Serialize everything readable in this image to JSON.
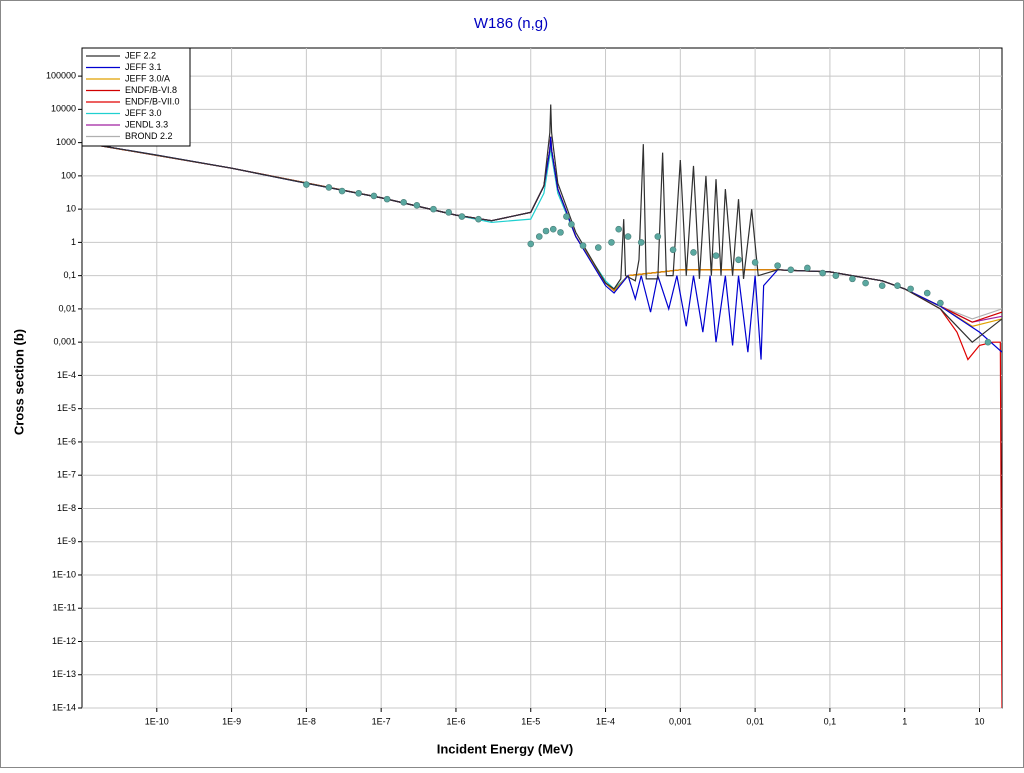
{
  "chart_data": {
    "type": "line",
    "title": "W186 (n,g)",
    "x_label": "Incident Energy (MeV)",
    "y_label": "Cross section (b)",
    "log_x": true,
    "log_y": true,
    "grid": true,
    "legend": "top-left",
    "xlim": [
      1e-11,
      20
    ],
    "ylim": [
      1e-14,
      700000
    ],
    "xticks": [
      {
        "value": 1e-10,
        "label": "1E-10"
      },
      {
        "value": 1e-09,
        "label": "1E-9"
      },
      {
        "value": 1e-08,
        "label": "1E-8"
      },
      {
        "value": 1e-07,
        "label": "1E-7"
      },
      {
        "value": 1e-06,
        "label": "1E-6"
      },
      {
        "value": 1e-05,
        "label": "1E-5"
      },
      {
        "value": 0.0001,
        "label": "1E-4"
      },
      {
        "value": 0.001,
        "label": "0,001"
      },
      {
        "value": 0.01,
        "label": "0,01"
      },
      {
        "value": 0.1,
        "label": "0,1"
      },
      1,
      10
    ],
    "yticks": [
      100000,
      10000,
      1000,
      100,
      10,
      1,
      {
        "value": 0.1,
        "label": "0,1"
      },
      {
        "value": 0.01,
        "label": "0,01"
      },
      {
        "value": 0.001,
        "label": "0,001"
      },
      {
        "value": 0.0001,
        "label": "1E-4"
      },
      {
        "value": 1e-05,
        "label": "1E-5"
      },
      {
        "value": 1e-06,
        "label": "1E-6"
      },
      {
        "value": 1e-07,
        "label": "1E-7"
      },
      {
        "value": 1e-08,
        "label": "1E-8"
      },
      {
        "value": 1e-09,
        "label": "1E-9"
      },
      {
        "value": 1e-10,
        "label": "1E-10"
      },
      {
        "value": 1e-11,
        "label": "1E-11"
      },
      {
        "value": 1e-12,
        "label": "1E-12"
      },
      {
        "value": 1e-13,
        "label": "1E-13"
      },
      {
        "value": 1e-14,
        "label": "1E-14"
      }
    ],
    "series": [
      {
        "name": "JEF 2.2",
        "color": "#303030",
        "x": [
          1e-11,
          1e-10,
          1e-09,
          1e-08,
          1e-07,
          1e-06,
          3e-06,
          1e-05,
          1.5e-05,
          1.8e-05,
          1.85e-05,
          1.9e-05,
          2.3e-05,
          4e-05,
          0.0001,
          0.00013,
          0.00016,
          0.000175,
          0.000185,
          0.00025,
          0.00028,
          0.00032,
          0.00035,
          0.0005,
          0.00058,
          0.00065,
          0.0008,
          0.001,
          0.0012,
          0.0015,
          0.0018,
          0.0022,
          0.0026,
          0.003,
          0.0035,
          0.004,
          0.005,
          0.006,
          0.007,
          0.009,
          0.011,
          0.02,
          0.1,
          0.5,
          1,
          3,
          8,
          20
        ],
        "values": [
          1000,
          420,
          170,
          60,
          22,
          6.6,
          4.5,
          8,
          50,
          2000,
          14000,
          2000,
          60,
          2,
          0.06,
          0.04,
          0.08,
          5,
          0.1,
          0.07,
          0.3,
          900,
          0.08,
          0.08,
          500,
          0.1,
          0.1,
          300,
          0.1,
          200,
          0.08,
          100,
          0.1,
          80,
          0.1,
          40,
          0.1,
          20,
          0.08,
          10,
          0.1,
          0.15,
          0.13,
          0.07,
          0.04,
          0.01,
          0.001,
          0.005
        ]
      },
      {
        "name": "JEFF 3.1",
        "color": "#0000d0",
        "x": [
          1e-11,
          1e-10,
          1e-09,
          1e-08,
          1e-07,
          1e-06,
          3e-06,
          1e-05,
          1.5e-05,
          1.8e-05,
          1.85e-05,
          1.9e-05,
          2.3e-05,
          4e-05,
          0.0001,
          0.00013,
          0.0002,
          0.00025,
          0.0003,
          0.0004,
          0.0005,
          0.0007,
          0.0009,
          0.0012,
          0.0015,
          0.002,
          0.0025,
          0.003,
          0.004,
          0.005,
          0.006,
          0.008,
          0.01,
          0.012,
          0.013,
          0.02,
          0.1,
          0.5,
          1,
          3,
          10,
          20
        ],
        "values": [
          1000,
          420,
          170,
          60,
          22,
          6.6,
          4.5,
          8,
          50,
          600,
          1500,
          600,
          40,
          1.5,
          0.05,
          0.03,
          0.1,
          0.02,
          0.1,
          0.008,
          0.1,
          0.01,
          0.1,
          0.003,
          0.1,
          0.002,
          0.1,
          0.001,
          0.1,
          0.0008,
          0.1,
          0.0005,
          0.1,
          0.0003,
          0.05,
          0.15,
          0.13,
          0.07,
          0.04,
          0.012,
          0.002,
          0.0005
        ]
      },
      {
        "name": "JEFF 3.0/A",
        "color": "#e0a000",
        "x": [
          1e-11,
          1e-09,
          1e-07,
          1e-06,
          3e-06,
          1e-05,
          1.5e-05,
          1.8e-05,
          1.85e-05,
          1.9e-05,
          2.3e-05,
          4e-05,
          0.0001,
          0.00013,
          0.0002,
          0.001,
          0.02,
          0.1,
          0.5,
          1,
          3,
          8,
          20
        ],
        "values": [
          1000,
          170,
          22,
          6.6,
          4.5,
          8,
          50,
          600,
          1500,
          600,
          40,
          1.5,
          0.06,
          0.035,
          0.1,
          0.15,
          0.15,
          0.13,
          0.07,
          0.04,
          0.012,
          0.003,
          0.005
        ]
      },
      {
        "name": "ENDF/B-VI.8",
        "color": "#d00000",
        "x": [
          1e-11,
          1e-09,
          1e-07,
          1e-06,
          3e-06,
          1e-05,
          1.5e-05,
          1.8e-05,
          1.85e-05,
          1.9e-05,
          2.3e-05,
          4e-05,
          0.0001,
          0.00013,
          0.0002,
          0.001,
          0.02,
          0.1,
          0.5,
          1,
          3,
          8,
          20
        ],
        "values": [
          1000,
          170,
          22,
          6.6,
          4.5,
          8,
          50,
          600,
          1500,
          600,
          40,
          1.5,
          0.06,
          0.035,
          0.1,
          0.15,
          0.15,
          0.13,
          0.07,
          0.04,
          0.012,
          0.004,
          0.008
        ]
      },
      {
        "name": "ENDF/B-VII.0",
        "color": "#e00000",
        "x": [
          1e-11,
          1e-09,
          1e-07,
          1e-06,
          3e-06,
          1e-05,
          1.5e-05,
          1.8e-05,
          1.85e-05,
          1.9e-05,
          2.3e-05,
          4e-05,
          0.0001,
          0.00013,
          0.0002,
          0.001,
          0.02,
          0.1,
          0.5,
          1,
          3,
          5,
          7,
          10,
          15,
          19,
          20
        ],
        "values": [
          1000,
          170,
          22,
          6.6,
          4.5,
          8,
          50,
          600,
          1500,
          600,
          40,
          1.5,
          0.06,
          0.035,
          0.1,
          0.15,
          0.15,
          0.13,
          0.07,
          0.04,
          0.01,
          0.002,
          0.0003,
          0.0008,
          0.001,
          0.001,
          1e-14
        ]
      },
      {
        "name": "JEFF 3.0",
        "color": "#20d0d0",
        "x": [
          1e-11,
          1e-09,
          1e-07,
          1e-06,
          3e-06,
          1e-05,
          1.5e-05,
          1.8e-05,
          1.85e-05,
          1.9e-05,
          2.3e-05,
          4e-05,
          0.0001,
          0.00013,
          0.0002,
          0.001,
          0.02,
          0.1,
          0.5,
          1,
          3
        ],
        "values": [
          1000,
          170,
          22,
          6.6,
          4,
          5,
          30,
          400,
          1000,
          400,
          30,
          1.5,
          0.07,
          0.04,
          0.1,
          0.15,
          0.15,
          0.13,
          0.07,
          0.04,
          0.012
        ]
      },
      {
        "name": "JENDL 3.3",
        "color": "#a020a0",
        "x": [
          1e-11,
          1e-09,
          1e-07,
          1e-06,
          3e-06,
          1e-05,
          1.5e-05,
          1.8e-05,
          1.85e-05,
          1.9e-05,
          2.3e-05,
          4e-05,
          0.0001,
          0.00013,
          0.0002,
          0.001,
          0.02,
          0.1,
          0.5,
          1,
          3,
          8,
          20
        ],
        "values": [
          1000,
          170,
          22,
          6.6,
          4.5,
          8,
          50,
          600,
          1500,
          600,
          40,
          1.5,
          0.06,
          0.035,
          0.1,
          0.15,
          0.15,
          0.13,
          0.07,
          0.04,
          0.012,
          0.004,
          0.006
        ]
      },
      {
        "name": "BROND 2.2",
        "color": "#b0b0b0",
        "x": [
          1e-11,
          1e-09,
          1e-07,
          1e-06,
          3e-06,
          1e-05,
          1.5e-05,
          1.8e-05,
          1.85e-05,
          1.9e-05,
          2.3e-05,
          4e-05,
          0.0001,
          0.00013,
          0.0002,
          0.001,
          0.02,
          0.1,
          0.5,
          1,
          3,
          8,
          20
        ],
        "values": [
          1000,
          170,
          22,
          6.6,
          4.5,
          8,
          50,
          600,
          1500,
          600,
          40,
          1.5,
          0.06,
          0.035,
          0.1,
          0.15,
          0.15,
          0.13,
          0.07,
          0.04,
          0.012,
          0.005,
          0.01
        ]
      }
    ],
    "markers": {
      "color": "#5aa8a0",
      "x": [
        1e-08,
        2e-08,
        3e-08,
        5e-08,
        8e-08,
        1.2e-07,
        2e-07,
        3e-07,
        5e-07,
        8e-07,
        1.2e-06,
        2e-06,
        1e-05,
        1.3e-05,
        1.6e-05,
        2e-05,
        2.5e-05,
        3e-05,
        3.5e-05,
        5e-05,
        8e-05,
        0.00012,
        0.00015,
        0.0002,
        0.0003,
        0.0005,
        0.0008,
        0.0015,
        0.003,
        0.006,
        0.01,
        0.02,
        0.03,
        0.05,
        0.08,
        0.12,
        0.2,
        0.3,
        0.5,
        0.8,
        1.2,
        2,
        3,
        13
      ],
      "values": [
        55,
        45,
        35,
        30,
        25,
        20,
        16,
        13,
        10,
        8,
        6,
        5,
        0.9,
        1.5,
        2.2,
        2.5,
        2,
        6,
        3.5,
        0.8,
        0.7,
        1,
        2.5,
        1.5,
        1,
        1.5,
        0.6,
        0.5,
        0.4,
        0.3,
        0.25,
        0.2,
        0.15,
        0.17,
        0.12,
        0.1,
        0.08,
        0.06,
        0.05,
        0.05,
        0.04,
        0.03,
        0.015,
        0.001
      ]
    }
  }
}
